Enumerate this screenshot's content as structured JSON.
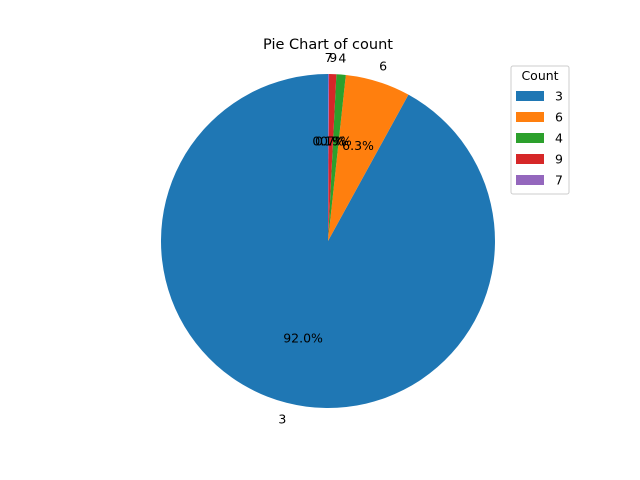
{
  "chart_data": {
    "type": "pie",
    "title": "Pie Chart of count",
    "categories": [
      "3",
      "6",
      "4",
      "9",
      "7"
    ],
    "values": [
      92.0,
      6.3,
      0.9,
      0.7,
      0.1
    ],
    "percent_labels": [
      "92.0%",
      "6.3%",
      "0.9%",
      "0.7%",
      "0.1%"
    ],
    "colors": [
      "#1f77b4",
      "#ff7f0e",
      "#2ca02c",
      "#d62728",
      "#9467bd"
    ],
    "start_angle_deg": 90,
    "direction": "counterclockwise",
    "legend": {
      "title": "Count",
      "placement": "top-right",
      "entries": [
        "3",
        "6",
        "4",
        "9",
        "7"
      ]
    }
  }
}
